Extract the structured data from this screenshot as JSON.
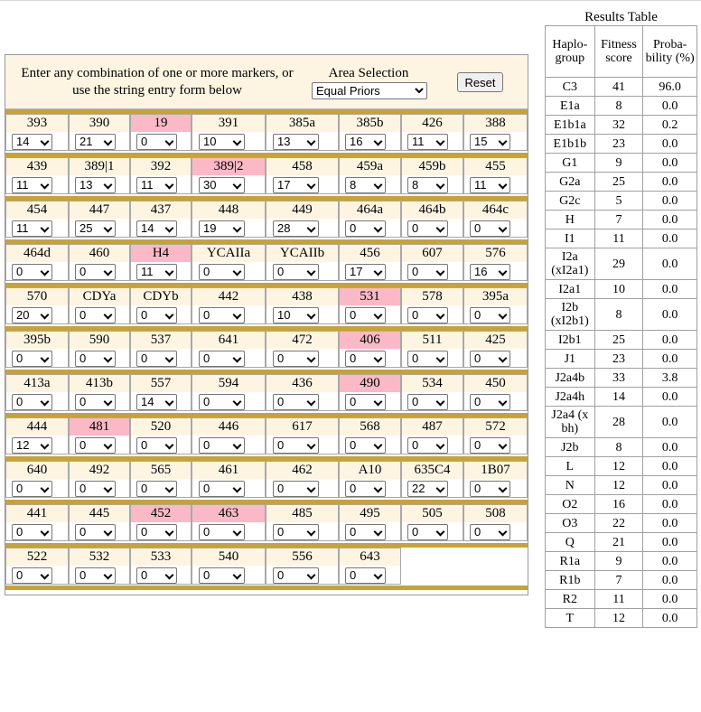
{
  "instructions": "Enter any combination of one or more markers, or use the string entry form below",
  "area": {
    "label": "Area Selection",
    "selected": "Equal Priors"
  },
  "reset_label": "Reset",
  "marker_rows": [
    [
      {
        "name": "393",
        "value": "14",
        "hi": false
      },
      {
        "name": "390",
        "value": "21",
        "hi": false
      },
      {
        "name": "19",
        "value": "0",
        "hi": true
      },
      {
        "name": "391",
        "value": "10",
        "hi": false
      },
      {
        "name": "385a",
        "value": "13",
        "hi": false
      },
      {
        "name": "385b",
        "value": "16",
        "hi": false
      },
      {
        "name": "426",
        "value": "11",
        "hi": false
      },
      {
        "name": "388",
        "value": "15",
        "hi": false
      }
    ],
    [
      {
        "name": "439",
        "value": "11",
        "hi": false
      },
      {
        "name": "389|1",
        "value": "13",
        "hi": false
      },
      {
        "name": "392",
        "value": "11",
        "hi": false
      },
      {
        "name": "389|2",
        "value": "30",
        "hi": true
      },
      {
        "name": "458",
        "value": "17",
        "hi": false
      },
      {
        "name": "459a",
        "value": "8",
        "hi": false
      },
      {
        "name": "459b",
        "value": "8",
        "hi": false
      },
      {
        "name": "455",
        "value": "11",
        "hi": false
      }
    ],
    [
      {
        "name": "454",
        "value": "11",
        "hi": false
      },
      {
        "name": "447",
        "value": "25",
        "hi": false
      },
      {
        "name": "437",
        "value": "14",
        "hi": false
      },
      {
        "name": "448",
        "value": "19",
        "hi": false
      },
      {
        "name": "449",
        "value": "28",
        "hi": false
      },
      {
        "name": "464a",
        "value": "0",
        "hi": false
      },
      {
        "name": "464b",
        "value": "0",
        "hi": false
      },
      {
        "name": "464c",
        "value": "0",
        "hi": false
      }
    ],
    [
      {
        "name": "464d",
        "value": "0",
        "hi": false
      },
      {
        "name": "460",
        "value": "0",
        "hi": false
      },
      {
        "name": "H4",
        "value": "11",
        "hi": true
      },
      {
        "name": "YCAIIa",
        "value": "0",
        "hi": false
      },
      {
        "name": "YCAIIb",
        "value": "0",
        "hi": false
      },
      {
        "name": "456",
        "value": "17",
        "hi": false
      },
      {
        "name": "607",
        "value": "0",
        "hi": false
      },
      {
        "name": "576",
        "value": "16",
        "hi": false
      }
    ],
    [
      {
        "name": "570",
        "value": "20",
        "hi": false
      },
      {
        "name": "CDYa",
        "value": "0",
        "hi": false
      },
      {
        "name": "CDYb",
        "value": "0",
        "hi": false
      },
      {
        "name": "442",
        "value": "0",
        "hi": false
      },
      {
        "name": "438",
        "value": "10",
        "hi": false
      },
      {
        "name": "531",
        "value": "0",
        "hi": true
      },
      {
        "name": "578",
        "value": "0",
        "hi": false
      },
      {
        "name": "395a",
        "value": "0",
        "hi": false
      }
    ],
    [
      {
        "name": "395b",
        "value": "0",
        "hi": false
      },
      {
        "name": "590",
        "value": "0",
        "hi": false
      },
      {
        "name": "537",
        "value": "0",
        "hi": false
      },
      {
        "name": "641",
        "value": "0",
        "hi": false
      },
      {
        "name": "472",
        "value": "0",
        "hi": false
      },
      {
        "name": "406",
        "value": "0",
        "hi": true
      },
      {
        "name": "511",
        "value": "0",
        "hi": false
      },
      {
        "name": "425",
        "value": "0",
        "hi": false
      }
    ],
    [
      {
        "name": "413a",
        "value": "0",
        "hi": false
      },
      {
        "name": "413b",
        "value": "0",
        "hi": false
      },
      {
        "name": "557",
        "value": "14",
        "hi": false
      },
      {
        "name": "594",
        "value": "0",
        "hi": false
      },
      {
        "name": "436",
        "value": "0",
        "hi": false
      },
      {
        "name": "490",
        "value": "0",
        "hi": true
      },
      {
        "name": "534",
        "value": "0",
        "hi": false
      },
      {
        "name": "450",
        "value": "0",
        "hi": false
      }
    ],
    [
      {
        "name": "444",
        "value": "12",
        "hi": false
      },
      {
        "name": "481",
        "value": "0",
        "hi": true
      },
      {
        "name": "520",
        "value": "0",
        "hi": false
      },
      {
        "name": "446",
        "value": "0",
        "hi": false
      },
      {
        "name": "617",
        "value": "0",
        "hi": false
      },
      {
        "name": "568",
        "value": "0",
        "hi": false
      },
      {
        "name": "487",
        "value": "0",
        "hi": false
      },
      {
        "name": "572",
        "value": "0",
        "hi": false
      }
    ],
    [
      {
        "name": "640",
        "value": "0",
        "hi": false
      },
      {
        "name": "492",
        "value": "0",
        "hi": false
      },
      {
        "name": "565",
        "value": "0",
        "hi": false
      },
      {
        "name": "461",
        "value": "0",
        "hi": false
      },
      {
        "name": "462",
        "value": "0",
        "hi": false
      },
      {
        "name": "A10",
        "value": "0",
        "hi": false
      },
      {
        "name": "635C4",
        "value": "22",
        "hi": false
      },
      {
        "name": "1B07",
        "value": "0",
        "hi": false
      }
    ],
    [
      {
        "name": "441",
        "value": "0",
        "hi": false
      },
      {
        "name": "445",
        "value": "0",
        "hi": false
      },
      {
        "name": "452",
        "value": "0",
        "hi": true
      },
      {
        "name": "463",
        "value": "0",
        "hi": true
      },
      {
        "name": "485",
        "value": "0",
        "hi": false
      },
      {
        "name": "495",
        "value": "0",
        "hi": false
      },
      {
        "name": "505",
        "value": "0",
        "hi": false
      },
      {
        "name": "508",
        "value": "0",
        "hi": false
      }
    ],
    [
      {
        "name": "522",
        "value": "0",
        "hi": false
      },
      {
        "name": "532",
        "value": "0",
        "hi": false
      },
      {
        "name": "533",
        "value": "0",
        "hi": false
      },
      {
        "name": "540",
        "value": "0",
        "hi": false
      },
      {
        "name": "556",
        "value": "0",
        "hi": false
      },
      {
        "name": "643",
        "value": "0",
        "hi": false
      }
    ]
  ],
  "results": {
    "title": "Results Table",
    "headers": [
      "Haplo-group",
      "Fitness score",
      "Proba-bility (%)"
    ],
    "rows": [
      [
        "C3",
        "41",
        "96.0"
      ],
      [
        "E1a",
        "8",
        "0.0"
      ],
      [
        "E1b1a",
        "32",
        "0.2"
      ],
      [
        "E1b1b",
        "23",
        "0.0"
      ],
      [
        "G1",
        "9",
        "0.0"
      ],
      [
        "G2a",
        "25",
        "0.0"
      ],
      [
        "G2c",
        "5",
        "0.0"
      ],
      [
        "H",
        "7",
        "0.0"
      ],
      [
        "I1",
        "11",
        "0.0"
      ],
      [
        "I2a (xI2a1)",
        "29",
        "0.0"
      ],
      [
        "I2a1",
        "10",
        "0.0"
      ],
      [
        "I2b (xI2b1)",
        "8",
        "0.0"
      ],
      [
        "I2b1",
        "25",
        "0.0"
      ],
      [
        "J1",
        "23",
        "0.0"
      ],
      [
        "J2a4b",
        "33",
        "3.8"
      ],
      [
        "J2a4h",
        "14",
        "0.0"
      ],
      [
        "J2a4 (x bh)",
        "28",
        "0.0"
      ],
      [
        "J2b",
        "8",
        "0.0"
      ],
      [
        "L",
        "12",
        "0.0"
      ],
      [
        "N",
        "12",
        "0.0"
      ],
      [
        "O2",
        "16",
        "0.0"
      ],
      [
        "O3",
        "22",
        "0.0"
      ],
      [
        "Q",
        "21",
        "0.0"
      ],
      [
        "R1a",
        "9",
        "0.0"
      ],
      [
        "R1b",
        "7",
        "0.0"
      ],
      [
        "R2",
        "11",
        "0.0"
      ],
      [
        "T",
        "12",
        "0.0"
      ]
    ]
  },
  "colors": {
    "header_bg": "#fdf5e2",
    "highlight": "#fbb9c8",
    "bar": "#c9a236"
  }
}
